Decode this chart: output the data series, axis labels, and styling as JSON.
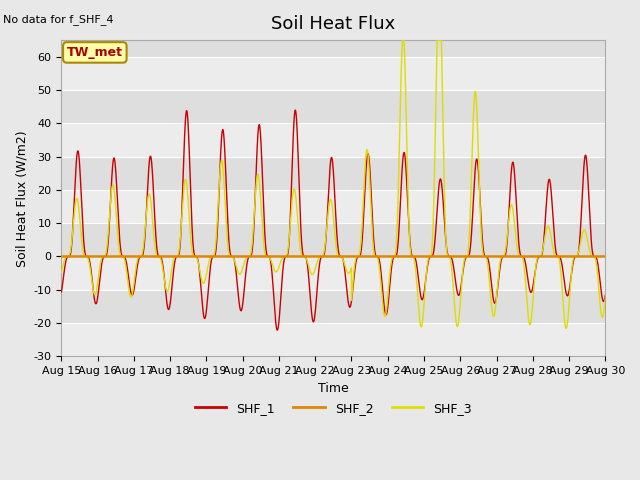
{
  "title": "Soil Heat Flux",
  "no_data_text": "No data for f_SHF_4",
  "annotation_text": "TW_met",
  "xlabel": "Time",
  "ylabel": "Soil Heat Flux (W/m2)",
  "ylim": [
    -30,
    65
  ],
  "yticks": [
    -30,
    -20,
    -10,
    0,
    10,
    20,
    30,
    40,
    50,
    60
  ],
  "x_start_day": 15,
  "x_end_day": 30,
  "xtick_days": [
    15,
    16,
    17,
    18,
    19,
    20,
    21,
    22,
    23,
    24,
    25,
    26,
    27,
    28,
    29,
    30
  ],
  "xtick_labels": [
    "Aug 15",
    "Aug 16",
    "Aug 17",
    "Aug 18",
    "Aug 19",
    "Aug 20",
    "Aug 21",
    "Aug 22",
    "Aug 23",
    "Aug 24",
    "Aug 25",
    "Aug 26",
    "Aug 27",
    "Aug 28",
    "Aug 29",
    "Aug 30"
  ],
  "color_shf1": "#cc0000",
  "color_shf2": "#dd8800",
  "color_shf3": "#dddd00",
  "legend_labels": [
    "SHF_1",
    "SHF_2",
    "SHF_3"
  ],
  "bg_color": "#e8e8e8",
  "plot_bg_color": "#dedede",
  "white_band_color": "#f0f0f0",
  "title_fontsize": 13,
  "axis_label_fontsize": 9,
  "tick_fontsize": 8
}
